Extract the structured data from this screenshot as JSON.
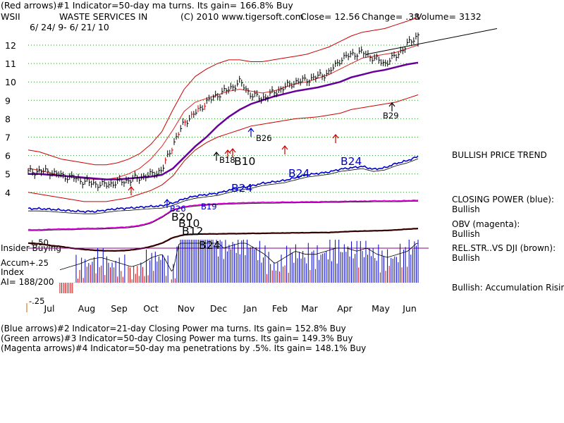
{
  "header": {
    "line1": "(Red arrows)#1 Indicator=50-day ma turns. Its gain= 166.8% Buy",
    "ticker": "WSII",
    "company": "WASTE SERVICES IN",
    "copyright": "(C) 2010 www.tigersoft.com",
    "close": "Close=  12.56",
    "change": "Change= .38",
    "volume": "Volume= 3132",
    "date_range": "6/ 24/ 9-  6/ 21/ 10"
  },
  "footer": {
    "line_blue": "(Blue arrows)#2 Indicator=21-day Closing Power ma turns. Its gain= 152.8% Buy",
    "line_green": "(Green arrows)#3 Indicator=50-day Closing Power ma turns. Its gain= 149.3% Buy",
    "line_magenta": "(Magenta arrows)#4 Indicator=50-day ma penetrations by .5%. Its gain= 148.1% Buy"
  },
  "side_panel": {
    "price_trend": "BULLISH PRICE TREND",
    "closing_power_label": "CLOSING POWER (blue):",
    "closing_power_value": "Bullish",
    "obv_label": "OBV (magenta):",
    "obv_value": "Bullish",
    "relstr_label": "REL.STR..VS DJI (brown):",
    "relstr_value": "Bullish",
    "accum_status": "Bullish: Accumulation Rising"
  },
  "accum_panel": {
    "insider_label": "Insider Buying",
    "accum_label_1": "Accum",
    "accum_label_2": "Index",
    "ai_value": "AI= 188/200",
    "top_tick": "+.50",
    "mid_tick": "+.25",
    "bottom_tick": "-.25"
  },
  "signals": [
    {
      "label": "B26",
      "color": "#000000",
      "big": false
    },
    {
      "label": "B29",
      "color": "#000000",
      "big": false
    },
    {
      "label": "B18",
      "color": "#000000",
      "big": false
    },
    {
      "label": "B10",
      "color": "#000000",
      "big": true
    },
    {
      "label": "B24",
      "color": "#0000cc",
      "big": true
    },
    {
      "label": "B24",
      "color": "#0000cc",
      "big": true
    },
    {
      "label": "B24",
      "color": "#0000cc",
      "big": true
    },
    {
      "label": "B26",
      "color": "#0000cc",
      "big": false
    },
    {
      "label": "B19",
      "color": "#0000cc",
      "big": false
    },
    {
      "label": "B20",
      "color": "#000000",
      "big": true
    },
    {
      "label": "B10",
      "color": "#000000",
      "big": true
    },
    {
      "label": "B12",
      "color": "#000000",
      "big": true
    },
    {
      "label": "B24",
      "color": "#000000",
      "big": true
    }
  ],
  "chart_data": {
    "type": "line",
    "title": "WASTE SERVICES IN (WSII) 6/24/09 - 6/21/10",
    "x_months": [
      "Jul",
      "Aug",
      "Sep",
      "Oct",
      "Nov",
      "Dec",
      "Jan",
      "Feb",
      "Mar",
      "Apr",
      "May",
      "Jun"
    ],
    "y_ticks": [
      4,
      5,
      6,
      7,
      8,
      9,
      10,
      11,
      12
    ],
    "ylim": [
      3.5,
      12.5
    ],
    "price_close": [
      5.1,
      5.15,
      5.1,
      4.9,
      4.8,
      4.6,
      4.45,
      4.4,
      4.55,
      4.65,
      4.8,
      4.95,
      5.2,
      6.6,
      7.8,
      8.3,
      8.9,
      9.3,
      9.6,
      10.0,
      9.3,
      9.1,
      9.4,
      9.7,
      10.0,
      10.1,
      10.3,
      10.5,
      11.2,
      11.5,
      11.6,
      11.3,
      11.0,
      11.4,
      12.0,
      12.56
    ],
    "ma50": [
      5.0,
      5.0,
      4.95,
      4.9,
      4.85,
      4.8,
      4.75,
      4.7,
      4.7,
      4.75,
      4.8,
      4.85,
      4.95,
      5.3,
      5.9,
      6.5,
      7.0,
      7.6,
      8.1,
      8.5,
      8.8,
      9.0,
      9.2,
      9.35,
      9.5,
      9.6,
      9.7,
      9.85,
      10.0,
      10.25,
      10.4,
      10.55,
      10.65,
      10.8,
      10.95,
      11.05
    ],
    "band_upper": [
      6.3,
      6.2,
      6.0,
      5.8,
      5.7,
      5.6,
      5.5,
      5.5,
      5.6,
      5.8,
      6.1,
      6.6,
      7.3,
      8.5,
      9.6,
      10.3,
      10.7,
      11.0,
      11.2,
      11.2,
      11.1,
      11.1,
      11.2,
      11.3,
      11.4,
      11.5,
      11.7,
      11.9,
      12.2,
      12.5,
      12.7,
      12.8,
      12.9,
      13.1,
      13.3,
      13.5
    ],
    "band_lower": [
      4.0,
      3.9,
      3.8,
      3.7,
      3.6,
      3.5,
      3.5,
      3.5,
      3.6,
      3.7,
      3.9,
      4.1,
      4.4,
      4.9,
      5.7,
      6.3,
      6.7,
      7.0,
      7.2,
      7.4,
      7.6,
      7.7,
      7.8,
      7.9,
      8.0,
      8.05,
      8.1,
      8.2,
      8.3,
      8.5,
      8.6,
      8.7,
      8.8,
      8.9,
      9.1,
      9.3
    ],
    "band_mid": [
      5.3,
      5.2,
      5.05,
      4.9,
      4.85,
      4.75,
      4.7,
      4.7,
      4.8,
      5.0,
      5.3,
      5.8,
      6.5,
      7.4,
      8.4,
      8.9,
      9.1,
      9.3,
      9.5,
      9.6,
      9.5,
      9.4,
      9.5,
      9.7,
      9.9,
      10.0,
      10.2,
      10.4,
      10.7,
      11.0,
      11.3,
      11.4,
      11.5,
      11.6,
      11.8,
      12.0
    ],
    "resistance_line": [
      [
        11.4,
        11.5
      ],
      [
        12.2,
        12.9
      ]
    ],
    "closing_power_blue": [
      0.1,
      0.1,
      0.08,
      0.05,
      0.02,
      0.0,
      0.0,
      0.05,
      0.1,
      0.12,
      0.15,
      0.18,
      0.2,
      0.3,
      0.45,
      0.55,
      0.6,
      0.65,
      0.75,
      0.85,
      0.9,
      1.0,
      1.05,
      1.1,
      1.2,
      1.3,
      1.35,
      1.4,
      1.5,
      1.55,
      1.6,
      1.5,
      1.55,
      1.7,
      1.8,
      1.95
    ],
    "obv_magenta": [
      0.0,
      0.0,
      0.02,
      0.03,
      0.03,
      0.05,
      0.05,
      0.06,
      0.08,
      0.1,
      0.15,
      0.25,
      0.45,
      0.7,
      0.8,
      0.85,
      0.88,
      0.9,
      0.92,
      0.93,
      0.94,
      0.95,
      0.95,
      0.96,
      0.96,
      0.97,
      0.97,
      0.98,
      0.98,
      0.99,
      0.99,
      1.0,
      1.0,
      1.0,
      1.01,
      1.02
    ],
    "relstr_brown": [
      0.3,
      0.28,
      0.22,
      0.18,
      0.12,
      0.08,
      0.05,
      0.03,
      0.03,
      0.05,
      0.1,
      0.18,
      0.3,
      0.5,
      0.6,
      0.62,
      0.63,
      0.63,
      0.64,
      0.64,
      0.65,
      0.65,
      0.66,
      0.66,
      0.67,
      0.67,
      0.68,
      0.68,
      0.7,
      0.72,
      0.73,
      0.74,
      0.75,
      0.77,
      0.8,
      0.82
    ],
    "accum_index": [
      -0.15,
      -0.1,
      -0.05,
      0.02,
      0.05,
      0.0,
      -0.05,
      -0.1,
      -0.05,
      0.05,
      0.1,
      -0.2,
      0.55,
      0.55,
      0.5,
      0.35,
      0.2,
      0.25,
      0.3,
      0.2,
      0.1,
      -0.05,
      0.05,
      0.15,
      0.1,
      0.1,
      0.15,
      0.2,
      0.2,
      0.15,
      0.2,
      0.1,
      0.05,
      0.1,
      0.15,
      0.3
    ],
    "accum_ylim": [
      -0.25,
      0.55
    ]
  }
}
